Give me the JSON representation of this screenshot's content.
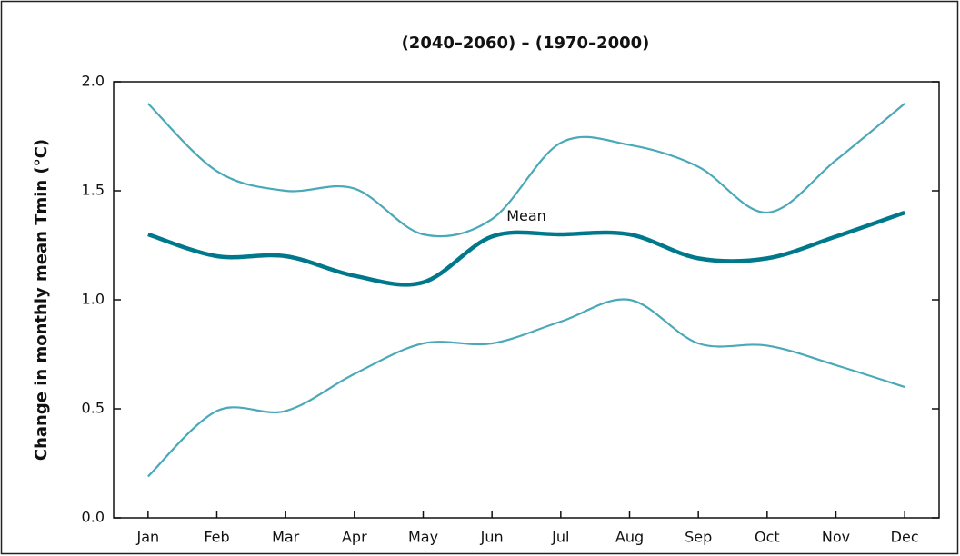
{
  "chart_data": {
    "type": "line",
    "title": "(2040–2060) – (1970–2000)",
    "y_label": "Change in monthly mean Tmin (°C)",
    "categories": [
      "Jan",
      "Feb",
      "Mar",
      "Apr",
      "May",
      "Jun",
      "Jul",
      "Aug",
      "Sep",
      "Oct",
      "Nov",
      "Dec"
    ],
    "series": [
      {
        "color": "#4aa9b9",
        "values": [
          1.9,
          1.59,
          1.5,
          1.51,
          1.3,
          1.37,
          1.72,
          1.71,
          1.61,
          1.4,
          1.64,
          1.9
        ]
      },
      {
        "name": "Mean",
        "color": "#00788c",
        "values": [
          1.3,
          1.2,
          1.2,
          1.11,
          1.08,
          1.29,
          1.3,
          1.3,
          1.19,
          1.19,
          1.29,
          1.4
        ]
      },
      {
        "color": "#4aa9b9",
        "values": [
          0.19,
          0.49,
          0.49,
          0.66,
          0.8,
          0.8,
          0.9,
          1.0,
          0.8,
          0.79,
          0.7,
          0.6
        ]
      }
    ],
    "ylim": [
      0,
      2
    ],
    "yticks": [
      {
        "value": 0,
        "label": "0.0"
      },
      0.5,
      {
        "value": 1,
        "label": "1.0"
      },
      1.5,
      {
        "value": 2,
        "label": "2.0"
      }
    ],
    "grid": false
  }
}
